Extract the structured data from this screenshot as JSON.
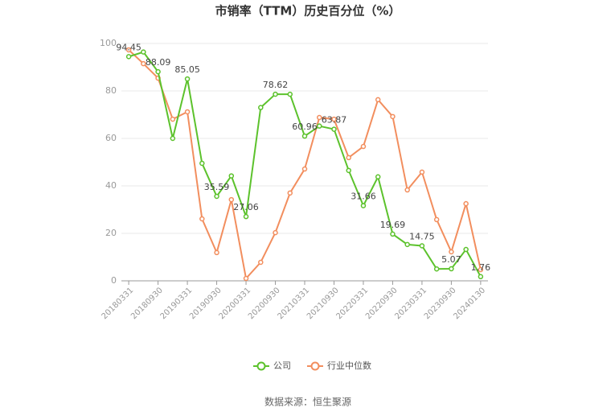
{
  "chart_data": {
    "type": "line",
    "title": "市销率（TTM）历史百分位（%）",
    "categories": [
      "20180331",
      null,
      "20180930",
      null,
      "20190331",
      null,
      "20190930",
      null,
      "20200331",
      null,
      "20200930",
      null,
      "20210331",
      null,
      "20210930",
      null,
      "20220331",
      null,
      "20220930",
      null,
      "20230331",
      null,
      "20230930",
      null,
      "20240130"
    ],
    "series": [
      {
        "name": "公司",
        "color": "#5cc22c",
        "values": [
          94.45,
          96.4,
          88.09,
          60,
          85.05,
          49.5,
          35.59,
          44.2,
          27.06,
          73,
          78.62,
          78.6,
          60.96,
          65.2,
          63.87,
          46.5,
          31.66,
          43.8,
          19.69,
          15.3,
          14.75,
          5,
          5.07,
          13.2,
          1.76
        ],
        "value_labels": [
          "94.45",
          null,
          "88.09",
          null,
          "85.05",
          null,
          "35.59",
          null,
          "27.06",
          null,
          "78.62",
          null,
          "60.96",
          null,
          "63.87",
          null,
          "31.66",
          null,
          "19.69",
          null,
          "14.75",
          null,
          "5.07",
          null,
          "1.76"
        ]
      },
      {
        "name": "行业中位数",
        "color": "#f28e5e",
        "values": [
          97.3,
          91.5,
          85.4,
          68.1,
          71.2,
          26.1,
          11.9,
          34.2,
          1,
          7.8,
          20.3,
          37,
          47.1,
          68.8,
          68.1,
          51.9,
          56.6,
          76.3,
          69.2,
          38.3,
          45.8,
          25.8,
          12.2,
          32.5,
          4.7
        ]
      }
    ],
    "ylim": [
      0,
      100
    ],
    "yticks": [
      0,
      20,
      40,
      60,
      80,
      100
    ],
    "grid": true,
    "legend": "bottom",
    "source": "数据来源：恒生聚源"
  }
}
